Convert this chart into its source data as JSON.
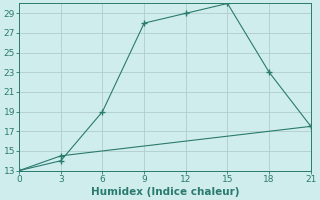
{
  "xlabel": "Humidex (Indice chaleur)",
  "line1_x": [
    0,
    3,
    6,
    9,
    12,
    15,
    18,
    21
  ],
  "line1_y": [
    13,
    14,
    19,
    28,
    29,
    30,
    23,
    17.5
  ],
  "line2_x": [
    0,
    3,
    21
  ],
  "line2_y": [
    13,
    14.5,
    17.5
  ],
  "line_color": "#2a7a6e",
  "bg_color": "#d0eded",
  "grid_color": "#b0cccc",
  "xlim": [
    0,
    21
  ],
  "ylim": [
    13,
    30
  ],
  "xticks": [
    0,
    3,
    6,
    9,
    12,
    15,
    18,
    21
  ],
  "yticks": [
    13,
    15,
    17,
    19,
    21,
    23,
    25,
    27,
    29
  ],
  "tick_fontsize": 6.5,
  "label_fontsize": 7.5
}
